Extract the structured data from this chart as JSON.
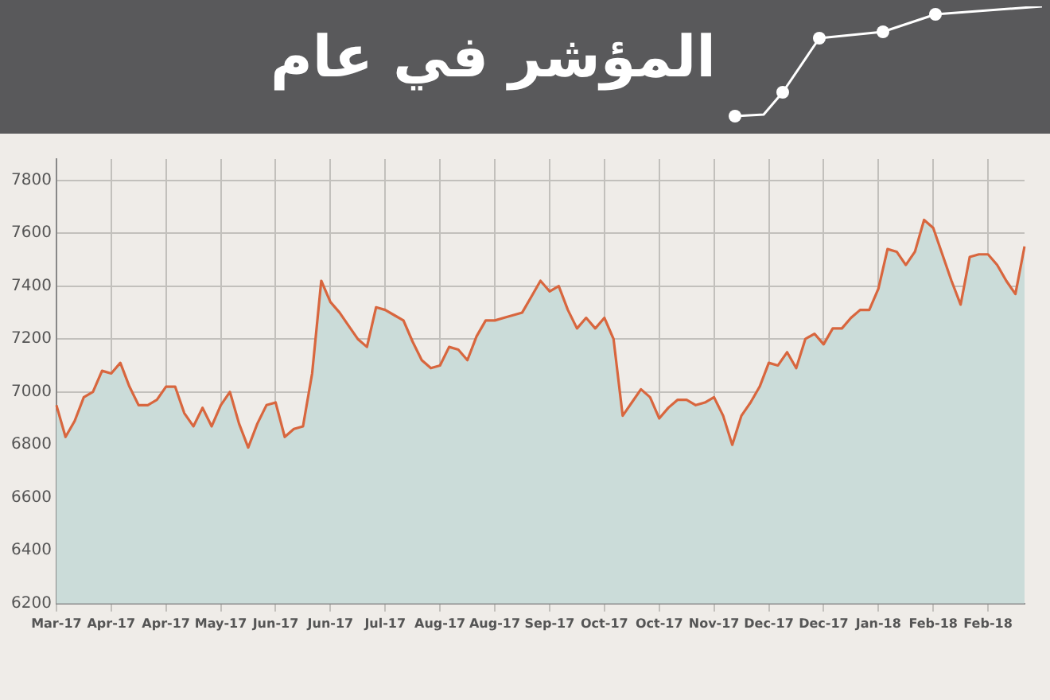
{
  "chart_data": {
    "type": "area",
    "title": "المؤشر في عام",
    "categories": [
      "Mar-17",
      null,
      null,
      null,
      null,
      null,
      "Apr-17",
      null,
      null,
      null,
      null,
      null,
      "Apr-17",
      null,
      null,
      null,
      null,
      null,
      "May-17",
      null,
      null,
      null,
      null,
      null,
      "Jun-17",
      null,
      null,
      null,
      null,
      null,
      "Jun-17",
      null,
      null,
      null,
      null,
      null,
      "Jul-17",
      null,
      null,
      null,
      null,
      null,
      "Aug-17",
      null,
      null,
      null,
      null,
      null,
      "Aug-17",
      null,
      null,
      null,
      null,
      null,
      "Sep-17",
      null,
      null,
      null,
      null,
      null,
      "Oct-17",
      null,
      null,
      null,
      null,
      null,
      "Oct-17",
      null,
      null,
      null,
      null,
      null,
      "Nov-17",
      null,
      null,
      null,
      null,
      null,
      "Dec-17",
      null,
      null,
      null,
      null,
      null,
      "Dec-17",
      null,
      null,
      null,
      null,
      null,
      "Jan-18",
      null,
      null,
      null,
      null,
      null,
      "Feb-18",
      null,
      null,
      null,
      null,
      null,
      "Feb-18",
      null,
      null,
      null,
      null
    ],
    "series": [
      {
        "color": "#d8663e",
        "values": [
          6950,
          6830,
          6890,
          6980,
          7000,
          7080,
          7070,
          7110,
          7020,
          6950,
          6950,
          6970,
          7020,
          7020,
          6920,
          6870,
          6940,
          6870,
          6950,
          7000,
          6880,
          6790,
          6880,
          6950,
          6960,
          6830,
          6860,
          6870,
          7070,
          7420,
          7340,
          7300,
          7250,
          7200,
          7170,
          7320,
          7310,
          7290,
          7270,
          7190,
          7120,
          7090,
          7100,
          7170,
          7160,
          7120,
          7210,
          7270,
          7270,
          7280,
          7290,
          7300,
          7360,
          7420,
          7380,
          7400,
          7310,
          7240,
          7280,
          7240,
          7280,
          7200,
          6910,
          6960,
          7010,
          6980,
          6900,
          6940,
          6970,
          6970,
          6950,
          6960,
          6980,
          6910,
          6800,
          6910,
          6960,
          7020,
          7110,
          7100,
          7150,
          7090,
          7200,
          7220,
          7180,
          7240,
          7240,
          7280,
          7310,
          7310,
          7390,
          7540,
          7530,
          7480,
          7530,
          7650,
          7620,
          7520,
          7420,
          7330,
          7510,
          7520,
          7520,
          7480,
          7420,
          7370,
          7550
        ]
      }
    ],
    "ylim": [
      6200,
      7880
    ],
    "yticks": [
      6200,
      6400,
      6600,
      6800,
      7000,
      7200,
      7400,
      7600,
      7800
    ],
    "grid": true
  }
}
